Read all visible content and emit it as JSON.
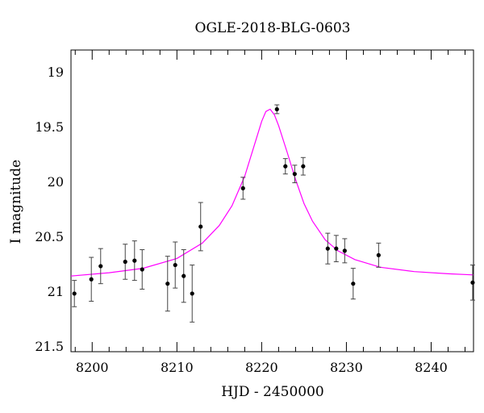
{
  "chart_data": {
    "type": "scatter",
    "title": "OGLE-2018-BLG-0603",
    "xlabel": "HJD - 2450000",
    "ylabel": "I magnitude",
    "xlim": [
      8197.5,
      8245
    ],
    "ylim": [
      21.55,
      18.8
    ],
    "y_inverted": true,
    "x_ticks": [
      8200,
      8210,
      8220,
      8230,
      8240
    ],
    "y_ticks": [
      19,
      19.5,
      20,
      20.5,
      21,
      21.5
    ],
    "x_ticklabels": [
      "8200",
      "8210",
      "8220",
      "8230",
      "8240"
    ],
    "y_ticklabels": [
      "19",
      "19.5",
      "20",
      "20.5",
      "21",
      "21.5"
    ],
    "grid": false,
    "colors": {
      "model": "#ff00ff",
      "points": "#000000",
      "errorbars": "#444444"
    },
    "series": [
      {
        "kind": "points",
        "x": [
          8197.9,
          8199.9,
          8201.0,
          8203.9,
          8205.0,
          8205.9,
          8208.9,
          8209.8,
          8210.8,
          8211.8,
          8212.8,
          8217.8,
          8221.8,
          8222.8,
          8223.9,
          8224.9,
          8227.8,
          8228.8,
          8229.8,
          8230.8,
          8233.8,
          8244.9
        ],
        "y": [
          21.02,
          20.89,
          20.77,
          20.73,
          20.72,
          20.8,
          20.93,
          20.76,
          20.86,
          21.02,
          20.41,
          20.06,
          19.34,
          19.86,
          19.93,
          19.86,
          20.61,
          20.61,
          20.63,
          20.93,
          20.67,
          20.92
        ],
        "err": [
          0.12,
          0.2,
          0.16,
          0.16,
          0.18,
          0.18,
          0.25,
          0.21,
          0.24,
          0.26,
          0.22,
          0.1,
          0.04,
          0.07,
          0.08,
          0.08,
          0.14,
          0.12,
          0.11,
          0.14,
          0.11,
          0.16
        ]
      },
      {
        "kind": "model",
        "x": [
          8197.5,
          8202.0,
          8206.0,
          8210.0,
          8213.0,
          8215.0,
          8216.5,
          8218.0,
          8219.0,
          8220.0,
          8220.5,
          8221.0,
          8221.5,
          8222.0,
          8223.0,
          8224.0,
          8225.0,
          8226.0,
          8227.5,
          8229.0,
          8231.0,
          8234.0,
          8238.0,
          8242.0,
          8245.0
        ],
        "y": [
          20.86,
          20.83,
          20.79,
          20.7,
          20.56,
          20.4,
          20.22,
          19.95,
          19.7,
          19.45,
          19.36,
          19.34,
          19.39,
          19.49,
          19.73,
          19.98,
          20.2,
          20.36,
          20.53,
          20.63,
          20.71,
          20.78,
          20.82,
          20.84,
          20.85
        ]
      }
    ]
  }
}
